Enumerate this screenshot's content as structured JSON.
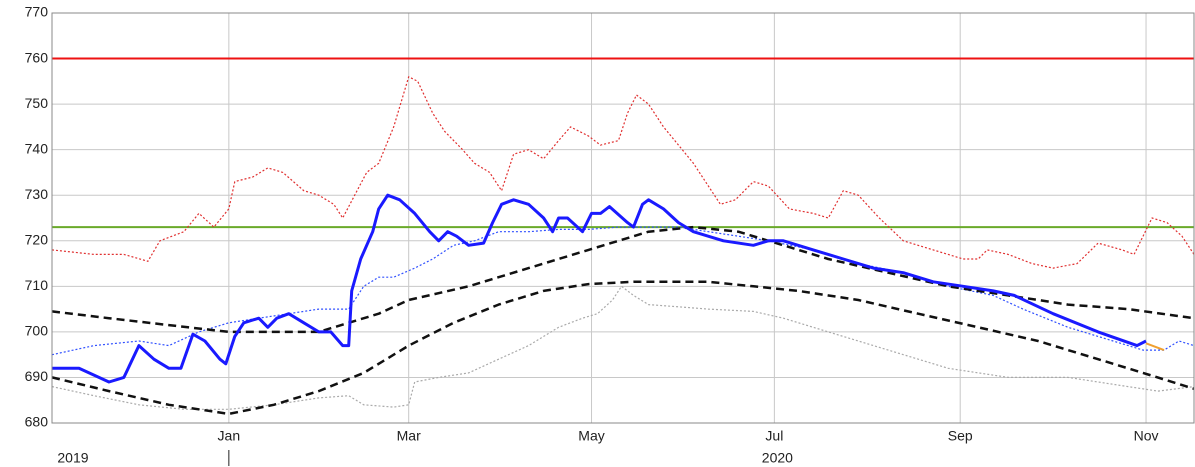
{
  "chart_data": {
    "type": "line",
    "xlim": [
      -59,
      322
    ],
    "ylim": [
      680,
      770
    ],
    "yticks": [
      680,
      690,
      700,
      710,
      720,
      730,
      740,
      750,
      760,
      770
    ],
    "xticks": [
      {
        "value": 0,
        "label": "Jan"
      },
      {
        "value": 60,
        "label": "Mar"
      },
      {
        "value": 121,
        "label": "May"
      },
      {
        "value": 182,
        "label": "Jul"
      },
      {
        "value": 244,
        "label": "Sep"
      },
      {
        "value": 306,
        "label": "Nov"
      }
    ],
    "year_ticks": [
      {
        "value": -52,
        "label": "2019"
      },
      {
        "value": 183,
        "label": "2020"
      }
    ],
    "grid": true,
    "reference_lines": [
      {
        "value": 760,
        "color": "#ee1111"
      },
      {
        "value": 723,
        "color": "#6aaa2a"
      }
    ],
    "series": [
      {
        "color": "#aaaaaa",
        "style": "dotted",
        "width": 1.2,
        "x": [
          -59,
          -45,
          -30,
          -15,
          0,
          15,
          30,
          40,
          45,
          55,
          60,
          62,
          70,
          80,
          90,
          100,
          110,
          118,
          123,
          128,
          131,
          135,
          140,
          150,
          160,
          175,
          185,
          200,
          220,
          240,
          260,
          280,
          300,
          310,
          322
        ],
        "values": [
          688,
          686,
          684,
          683,
          683,
          684,
          685.5,
          686,
          684,
          683.5,
          684,
          689,
          690,
          691,
          694,
          697,
          701,
          703,
          704,
          707,
          710,
          708,
          706,
          705.5,
          705,
          704.5,
          703,
          700,
          696,
          692,
          690,
          690,
          688,
          687,
          688
        ]
      },
      {
        "color": "#e03030",
        "style": "dotted",
        "width": 1.2,
        "x": [
          -59,
          -45,
          -35,
          -27,
          -23,
          -15,
          -10,
          -5,
          0,
          2,
          8,
          13,
          18,
          25,
          30,
          35,
          38,
          42,
          46,
          50,
          55,
          60,
          63,
          68,
          72,
          78,
          82,
          87,
          91,
          95,
          100,
          105,
          110,
          114,
          120,
          124,
          130,
          133,
          136,
          140,
          145,
          150,
          155,
          160,
          164,
          169,
          175,
          180,
          187,
          195,
          200,
          205,
          210,
          217,
          225,
          235,
          245,
          250,
          253,
          260,
          268,
          275,
          283,
          290,
          298,
          302,
          308,
          313,
          318,
          322
        ],
        "values": [
          718,
          717,
          717,
          715.5,
          720,
          722,
          726,
          723,
          727,
          733,
          734,
          736,
          735,
          731,
          730,
          728,
          725,
          730,
          735,
          737,
          745,
          756,
          755,
          748,
          744,
          740,
          737,
          735,
          731,
          739,
          740,
          738,
          742,
          745,
          743,
          741,
          742,
          748,
          752,
          750,
          745,
          741,
          737,
          732,
          728,
          729,
          733,
          732,
          727,
          726,
          725,
          731,
          730,
          725,
          720,
          718,
          716,
          716,
          718,
          717,
          715,
          714,
          715,
          719.5,
          718,
          717,
          725,
          724,
          721,
          717
        ]
      },
      {
        "color": "#3050ff",
        "style": "dotted",
        "width": 1.2,
        "x": [
          -59,
          -45,
          -30,
          -20,
          -10,
          0,
          10,
          20,
          30,
          40,
          45,
          50,
          55,
          62,
          68,
          75,
          82,
          90,
          100,
          110,
          120,
          130,
          140,
          150,
          160,
          170,
          180,
          195,
          210,
          225,
          240,
          255,
          265,
          280,
          295,
          305,
          312,
          317,
          322
        ],
        "values": [
          695,
          697,
          698,
          697,
          700,
          702,
          703,
          704,
          705,
          705,
          710,
          712,
          712,
          714,
          716,
          719,
          720,
          722,
          722,
          722.5,
          722.5,
          723,
          723,
          723,
          722,
          721,
          720,
          718,
          715,
          713,
          710,
          708,
          705,
          701,
          698,
          696,
          696,
          698,
          697
        ]
      },
      {
        "color": "#111111",
        "style": "dashed",
        "width": 2.5,
        "x": [
          -59,
          -40,
          -20,
          0,
          20,
          30,
          40,
          50,
          60,
          80,
          100,
          120,
          140,
          155,
          170,
          185,
          200,
          220,
          240,
          260,
          280,
          300,
          322
        ],
        "values": [
          704.5,
          703,
          701.5,
          700,
          700,
          700,
          702,
          704,
          707,
          710,
          714,
          718,
          722,
          723,
          722,
          719,
          716,
          713,
          710,
          708,
          706,
          705,
          703
        ]
      },
      {
        "color": "#111111",
        "style": "dashed",
        "width": 2.5,
        "x": [
          -59,
          -40,
          -20,
          0,
          15,
          30,
          45,
          60,
          75,
          90,
          105,
          120,
          135,
          150,
          160,
          175,
          190,
          210,
          230,
          250,
          270,
          290,
          305,
          322
        ],
        "values": [
          690,
          687,
          684,
          682,
          684,
          687,
          691,
          697,
          702,
          706,
          709,
          710.5,
          711,
          711,
          711,
          710,
          709,
          707,
          704,
          701,
          698,
          694,
          691,
          687.5
        ]
      },
      {
        "color": "#1a1aff",
        "style": "solid",
        "width": 3,
        "x": [
          -59,
          -50,
          -40,
          -35,
          -30,
          -25,
          -20,
          -16,
          -12,
          -8,
          -3,
          -1,
          2,
          5,
          10,
          13,
          16,
          20,
          25,
          30,
          34,
          38,
          40,
          41,
          44,
          48,
          50,
          53,
          57,
          62,
          67,
          70,
          73,
          76,
          80,
          85,
          88,
          91,
          95,
          100,
          105,
          108,
          110,
          113,
          118,
          121,
          124,
          127,
          133,
          135,
          138,
          140,
          145,
          150,
          155,
          165,
          175,
          180,
          185,
          195,
          205,
          215,
          225,
          235,
          245,
          255,
          262,
          275,
          290,
          303,
          306
        ],
        "values": [
          692,
          692,
          689,
          690,
          697,
          694,
          692,
          692,
          699.5,
          698,
          694,
          693,
          699,
          702,
          703,
          701,
          703,
          704,
          702,
          700,
          700,
          697,
          697,
          709,
          716,
          722,
          727,
          730,
          729,
          726,
          722,
          720,
          722,
          721,
          719,
          719.5,
          724,
          728,
          729,
          728,
          725,
          722,
          725,
          725,
          722,
          726,
          726,
          727.5,
          724,
          723,
          728,
          729,
          727,
          724,
          722,
          720,
          719,
          720,
          720,
          718,
          716,
          714,
          713,
          711,
          710,
          709,
          708,
          704,
          700,
          697,
          698
        ]
      },
      {
        "color": "#f0a030",
        "style": "solid",
        "width": 2,
        "x": [
          306,
          312
        ],
        "values": [
          697.5,
          696
        ]
      }
    ]
  }
}
